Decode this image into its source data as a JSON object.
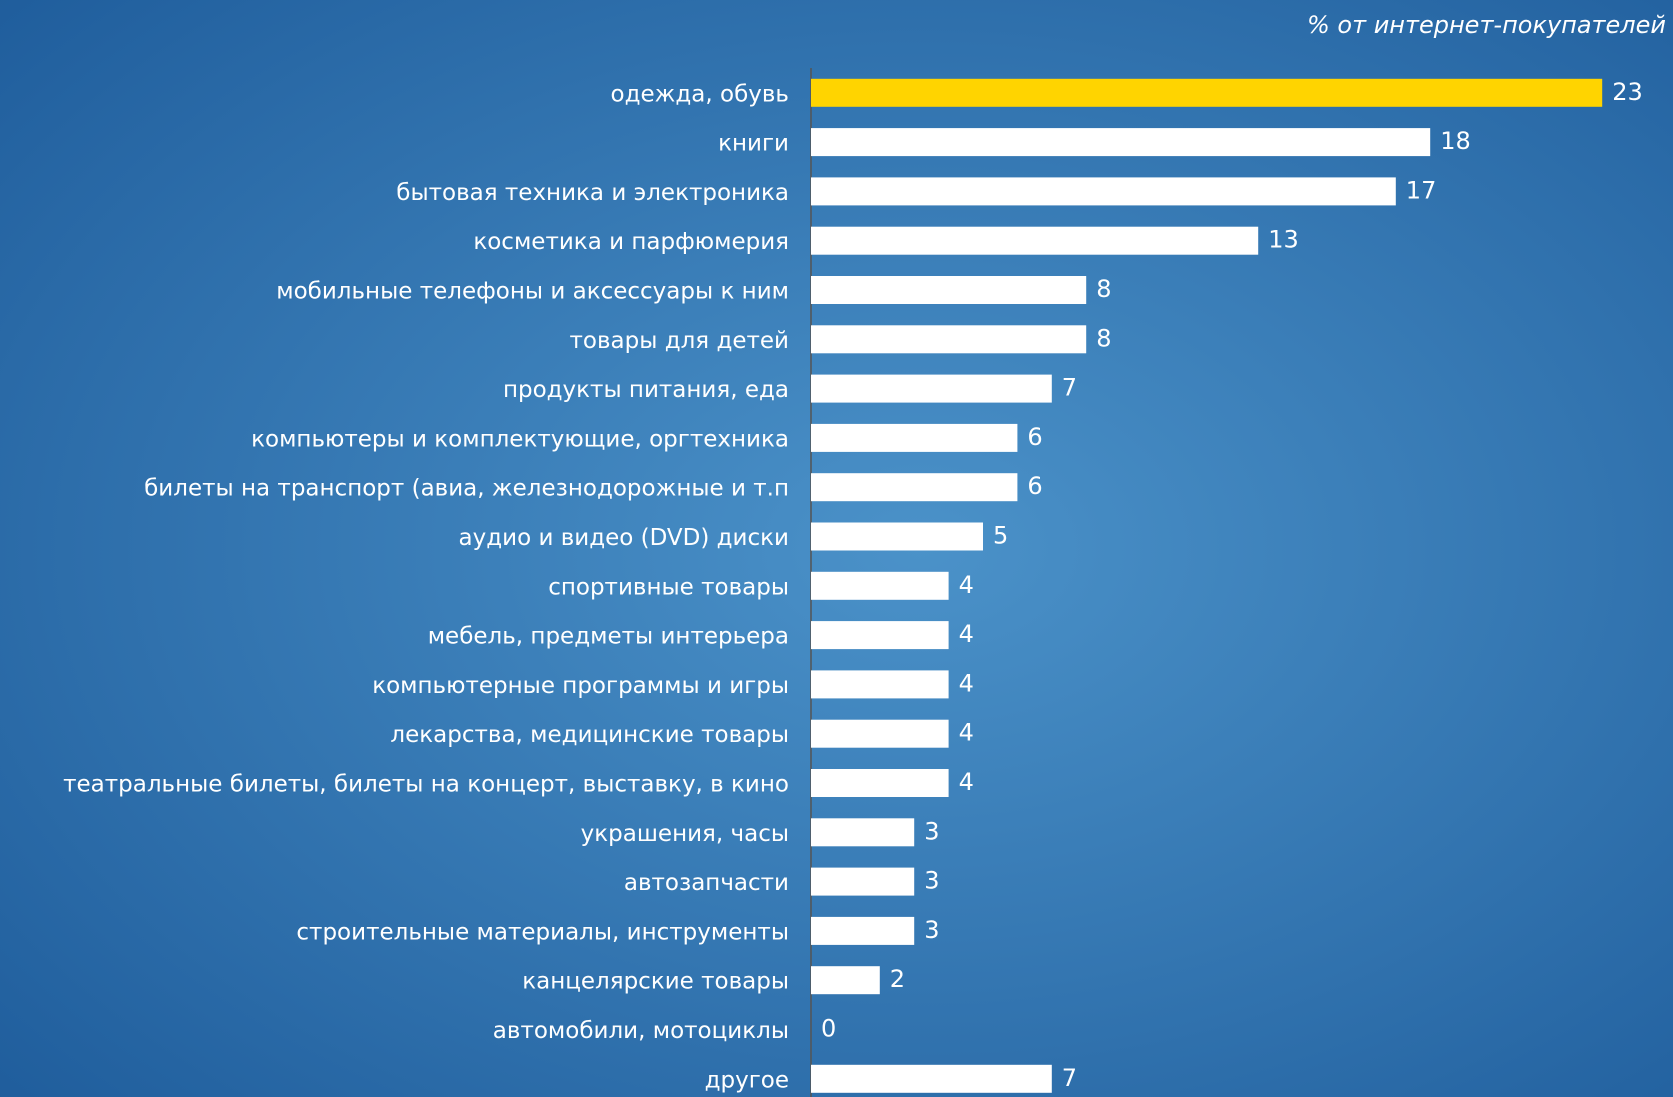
{
  "chart_data": {
    "type": "hbar",
    "title": "% от интернет-покупателей",
    "categories": [
      "одежда, обувь",
      "книги",
      "бытовая техника и электроника",
      "косметика и парфюмерия",
      "мобильные телефоны и аксессуары к ним",
      "товары для детей",
      "продукты питания, еда",
      "компьютеры и комплектующие, оргтехника",
      "билеты на транспорт (авиа, железнодорожные и т.п",
      "аудио и видео (DVD) диски",
      "спортивные товары",
      "мебель, предметы интерьера",
      "компьютерные программы и игры",
      "лекарства, медицинские товары",
      "театральные билеты, билеты на концерт, выставку, в кино",
      "украшения, часы",
      "автозапчасти",
      "строительные материалы, инструменты",
      "канцелярские товары",
      "автомобили, мотоциклы",
      "другое"
    ],
    "values": [
      23,
      18,
      17,
      13,
      8,
      8,
      7,
      6,
      6,
      5,
      4,
      4,
      4,
      4,
      4,
      3,
      3,
      3,
      2,
      0,
      7
    ],
    "colors": [
      "#ffd400",
      "#ffffff",
      "#ffffff",
      "#ffffff",
      "#ffffff",
      "#ffffff",
      "#ffffff",
      "#ffffff",
      "#ffffff",
      "#ffffff",
      "#ffffff",
      "#ffffff",
      "#ffffff",
      "#ffffff",
      "#ffffff",
      "#ffffff",
      "#ffffff",
      "#ffffff",
      "#ffffff",
      "#ffffff",
      "#ffffff"
    ],
    "xlim": [
      0,
      25
    ]
  }
}
